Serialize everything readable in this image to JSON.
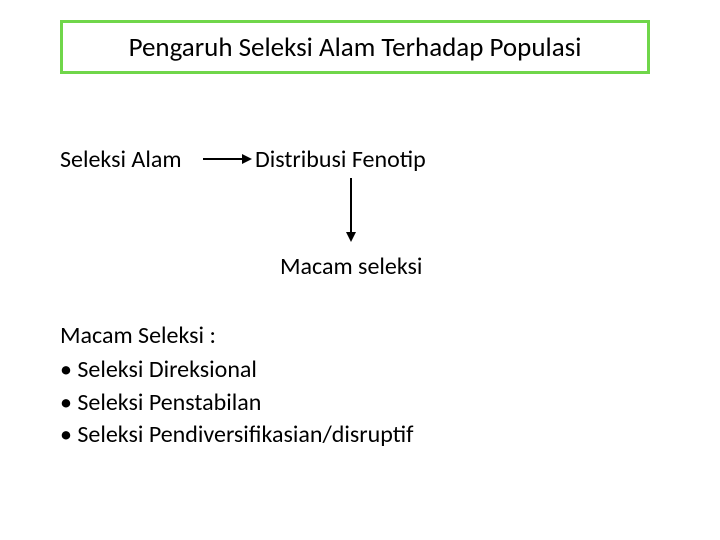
{
  "title": "Pengaruh Seleksi Alam Terhadap Populasi",
  "flow": {
    "left": "Seleksi Alam",
    "right": "Distribusi Fenotip",
    "down": "Macam seleksi"
  },
  "list": {
    "heading": "Macam Seleksi :",
    "items": [
      "Seleksi Direksional",
      "Seleksi Penstabilan",
      "Seleksi Pendiversifikasian/disruptif"
    ]
  },
  "style": {
    "title_border_color": "#70d64a",
    "title_fontsize": 27,
    "body_fontsize": 24,
    "text_color": "#000000",
    "background_color": "#ffffff",
    "arrow_color": "#000000"
  }
}
